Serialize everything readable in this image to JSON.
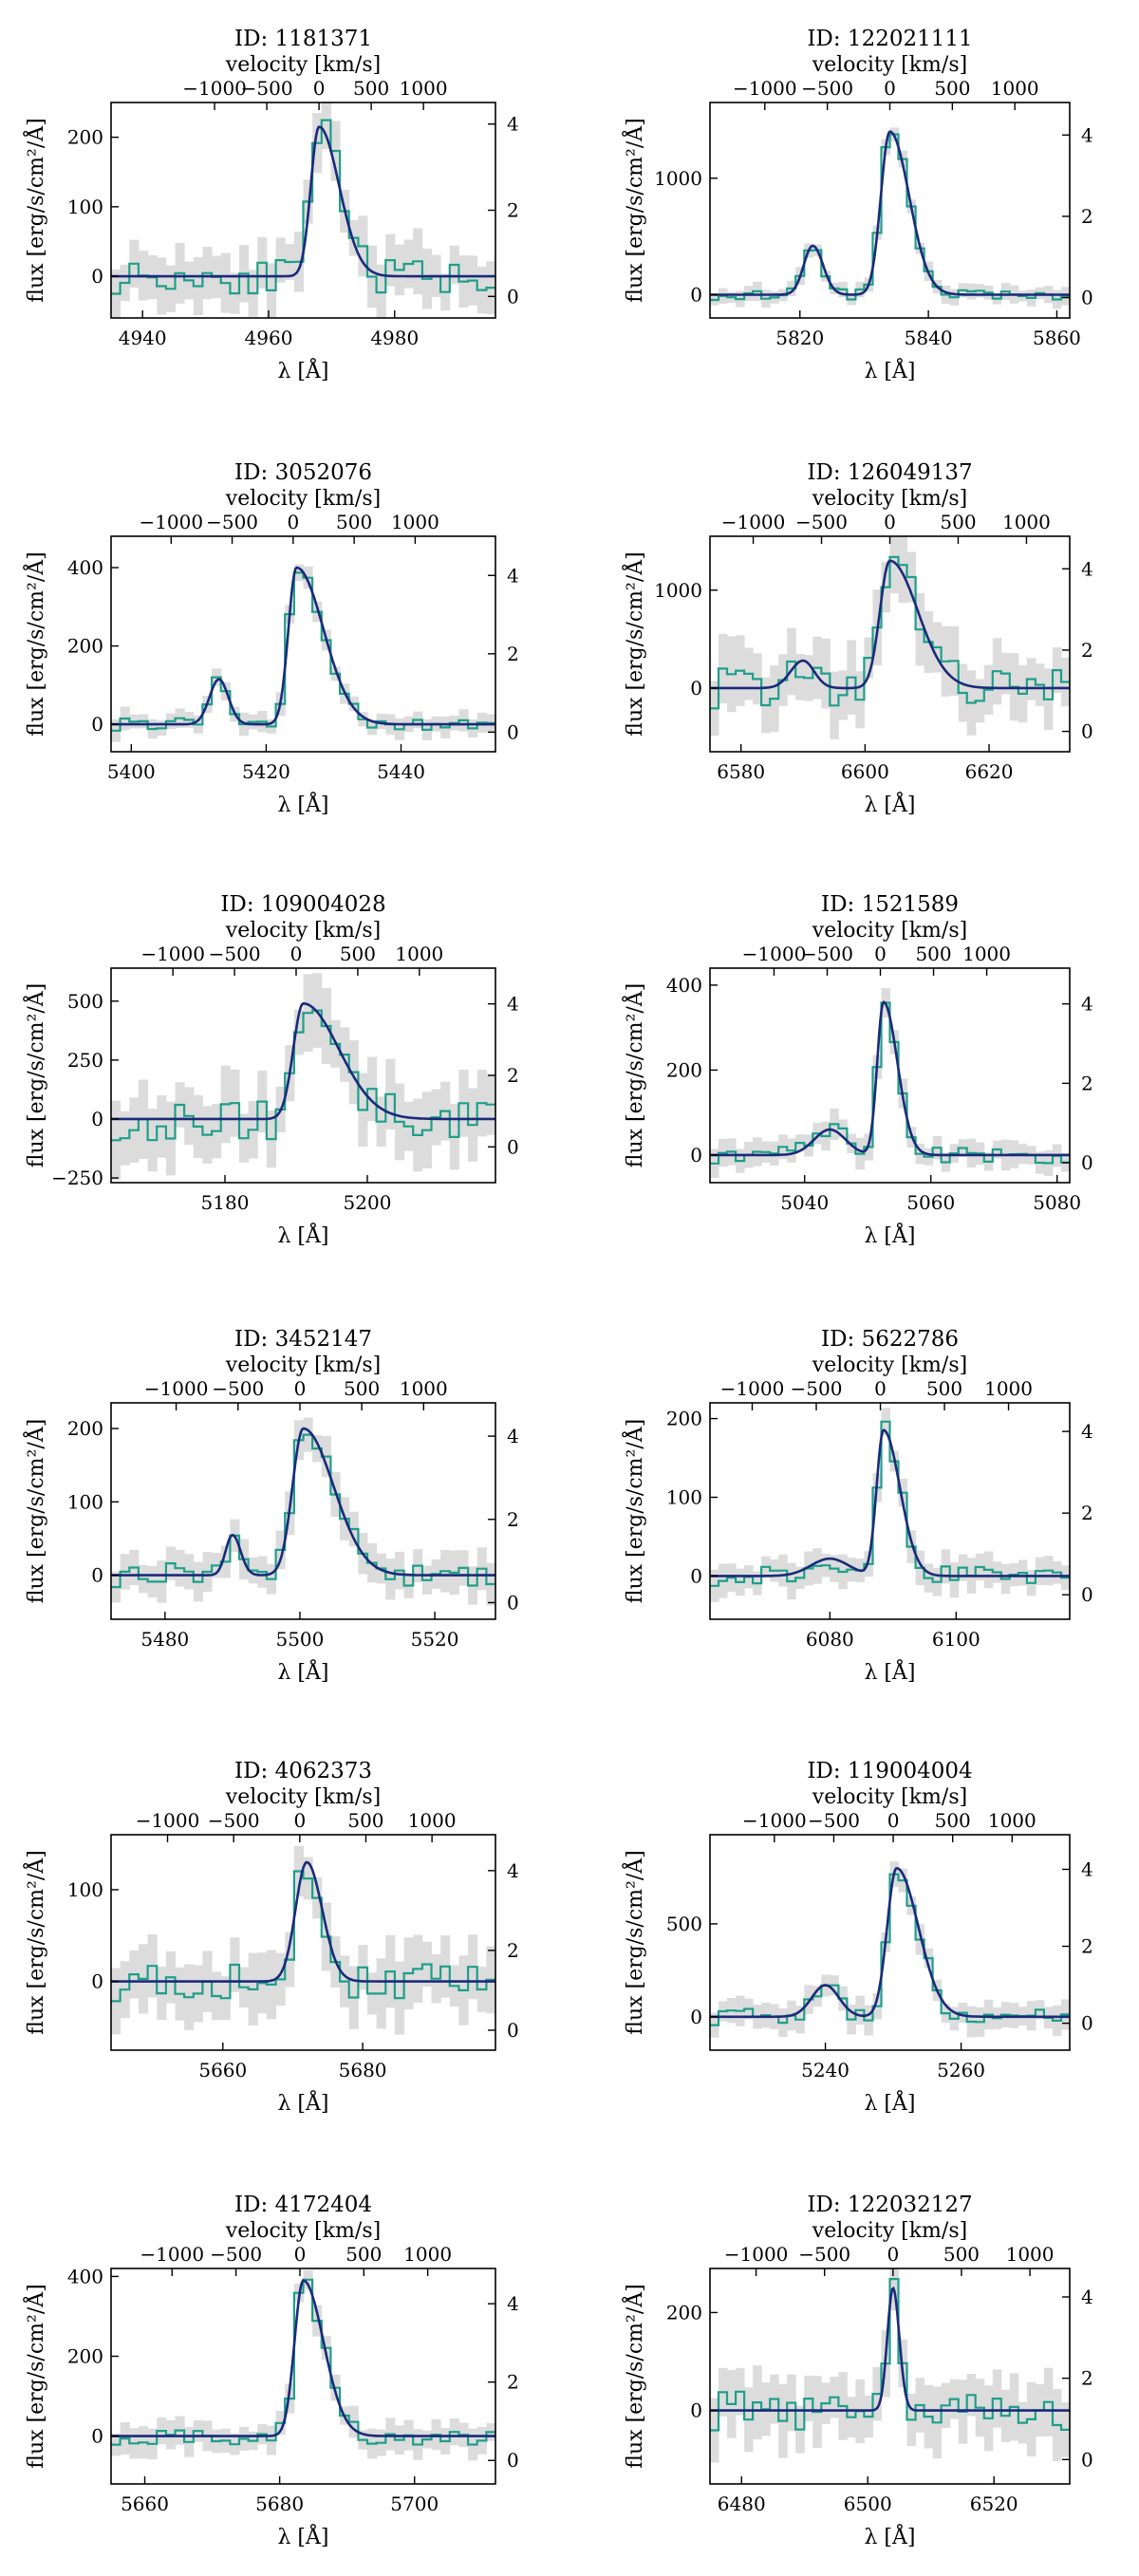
{
  "figure": {
    "colors": {
      "data": "#1f9e89",
      "model": "#1b2a7a",
      "band": "#dcdcdc",
      "axes": "#000000"
    }
  },
  "chart_data": [
    {
      "type": "line",
      "id": "ID: 1181371",
      "title": "ID: 1181371",
      "xlabel": "λ [Å]",
      "ylabel": "flux [erg/s/cm²/Å]",
      "top_label": "velocity [km/s]",
      "xlim": [
        4935,
        4996
      ],
      "ylim": [
        -60,
        250
      ],
      "rlim": [
        -0.5,
        4.5
      ],
      "xticks": [
        {
          "v": 4940,
          "l": "4940"
        },
        {
          "v": 4960,
          "l": "4960"
        },
        {
          "v": 4980,
          "l": "4980"
        }
      ],
      "yticks": [
        {
          "v": 0,
          "l": "0"
        },
        {
          "v": 100,
          "l": "100"
        },
        {
          "v": 200,
          "l": "200"
        }
      ],
      "rticks": [
        {
          "v": 0,
          "l": "0"
        },
        {
          "v": 2,
          "l": "2"
        },
        {
          "v": 4,
          "l": "4"
        }
      ],
      "vticks": [
        {
          "v": -1000,
          "l": "−1000"
        },
        {
          "v": -500,
          "l": "−500"
        },
        {
          "v": 0,
          "l": "0"
        },
        {
          "v": 500,
          "l": "500"
        },
        {
          "v": 1000,
          "l": "1000"
        }
      ],
      "center": 4968,
      "lines": [
        {
          "c": 4968,
          "a": 215,
          "sl": 1.3,
          "sr": 3.2
        }
      ],
      "seed": 11,
      "noise": 28
    },
    {
      "type": "line",
      "id": "ID: 122021111",
      "title": "ID: 122021111",
      "xlabel": "λ [Å]",
      "ylabel": "flux [erg/s/cm²/Å]",
      "top_label": "velocity [km/s]",
      "xlim": [
        5806,
        5862
      ],
      "ylim": [
        -200,
        1650
      ],
      "rlim": [
        -0.5,
        4.8
      ],
      "xticks": [
        {
          "v": 5820,
          "l": "5820"
        },
        {
          "v": 5840,
          "l": "5840"
        },
        {
          "v": 5860,
          "l": "5860"
        }
      ],
      "yticks": [
        {
          "v": 0,
          "l": "0"
        },
        {
          "v": 1000,
          "l": "1000"
        }
      ],
      "rticks": [
        {
          "v": 0,
          "l": "0"
        },
        {
          "v": 2,
          "l": "2"
        },
        {
          "v": 4,
          "l": "4"
        }
      ],
      "vticks": [
        {
          "v": -1000,
          "l": "−1000"
        },
        {
          "v": -500,
          "l": "−500"
        },
        {
          "v": 0,
          "l": "0"
        },
        {
          "v": 500,
          "l": "500"
        },
        {
          "v": 1000,
          "l": "1000"
        }
      ],
      "center": 5834,
      "lines": [
        {
          "c": 5834,
          "a": 1400,
          "sl": 1.4,
          "sr": 3.0
        },
        {
          "c": 5822,
          "a": 420,
          "sl": 1.4,
          "sr": 1.6
        }
      ],
      "seed": 23,
      "noise": 50
    },
    {
      "type": "line",
      "id": "ID: 3052076",
      "title": "ID: 3052076",
      "xlabel": "λ [Å]",
      "ylabel": "flux [erg/s/cm²/Å]",
      "top_label": "velocity [km/s]",
      "xlim": [
        5397,
        5454
      ],
      "ylim": [
        -70,
        480
      ],
      "rlim": [
        -0.5,
        5.0
      ],
      "xticks": [
        {
          "v": 5400,
          "l": "5400"
        },
        {
          "v": 5420,
          "l": "5420"
        },
        {
          "v": 5440,
          "l": "5440"
        }
      ],
      "yticks": [
        {
          "v": 0,
          "l": "0"
        },
        {
          "v": 200,
          "l": "200"
        },
        {
          "v": 400,
          "l": "400"
        }
      ],
      "rticks": [
        {
          "v": 0,
          "l": "0"
        },
        {
          "v": 2,
          "l": "2"
        },
        {
          "v": 4,
          "l": "4"
        }
      ],
      "vticks": [
        {
          "v": -1000,
          "l": "−1000"
        },
        {
          "v": -500,
          "l": "−500"
        },
        {
          "v": 0,
          "l": "0"
        },
        {
          "v": 500,
          "l": "500"
        },
        {
          "v": 1000,
          "l": "1000"
        }
      ],
      "center": 5424,
      "lines": [
        {
          "c": 5424.5,
          "a": 400,
          "sl": 1.2,
          "sr": 4.0
        },
        {
          "c": 5413,
          "a": 115,
          "sl": 1.4,
          "sr": 1.4
        }
      ],
      "seed": 37,
      "noise": 18
    },
    {
      "type": "line",
      "id": "ID: 126049137",
      "title": "ID: 126049137",
      "xlabel": "λ [Å]",
      "ylabel": "flux [erg/s/cm²/Å]",
      "top_label": "velocity [km/s]",
      "xlim": [
        6575,
        6633
      ],
      "ylim": [
        -650,
        1550
      ],
      "rlim": [
        -0.5,
        4.8
      ],
      "xticks": [
        {
          "v": 6580,
          "l": "6580"
        },
        {
          "v": 6600,
          "l": "6600"
        },
        {
          "v": 6620,
          "l": "6620"
        }
      ],
      "yticks": [
        {
          "v": 0,
          "l": "0"
        },
        {
          "v": 1000,
          "l": "1000"
        }
      ],
      "rticks": [
        {
          "v": 0,
          "l": "0"
        },
        {
          "v": 2,
          "l": "2"
        },
        {
          "v": 4,
          "l": "4"
        }
      ],
      "vticks": [
        {
          "v": -1000,
          "l": "−1000"
        },
        {
          "v": -500,
          "l": "−500"
        },
        {
          "v": 0,
          "l": "0"
        },
        {
          "v": 500,
          "l": "500"
        },
        {
          "v": 1000,
          "l": "1000"
        }
      ],
      "center": 6604,
      "lines": [
        {
          "c": 6604,
          "a": 1300,
          "sl": 1.6,
          "sr": 4.5
        },
        {
          "c": 6590,
          "a": 280,
          "sl": 2.0,
          "sr": 1.8
        }
      ],
      "seed": 41,
      "noise": 230
    },
    {
      "type": "line",
      "id": "ID: 109004028",
      "title": "ID: 109004028",
      "xlabel": "λ [Å]",
      "ylabel": "flux [erg/s/cm²/Å]",
      "top_label": "velocity [km/s]",
      "xlim": [
        5164,
        5218
      ],
      "ylim": [
        -270,
        640
      ],
      "rlim": [
        -1.0,
        5.0
      ],
      "xticks": [
        {
          "v": 5180,
          "l": "5180"
        },
        {
          "v": 5200,
          "l": "5200"
        }
      ],
      "yticks": [
        {
          "v": -250,
          "l": "−250"
        },
        {
          "v": 0,
          "l": "0"
        },
        {
          "v": 250,
          "l": "250"
        },
        {
          "v": 500,
          "l": "500"
        }
      ],
      "rticks": [
        {
          "v": 0,
          "l": "0"
        },
        {
          "v": 2,
          "l": "2"
        },
        {
          "v": 4,
          "l": "4"
        }
      ],
      "vticks": [
        {
          "v": -1000,
          "l": "−1000"
        },
        {
          "v": -500,
          "l": "−500"
        },
        {
          "v": 0,
          "l": "0"
        },
        {
          "v": 500,
          "l": "500"
        },
        {
          "v": 1000,
          "l": "1000"
        }
      ],
      "center": 5190,
      "lines": [
        {
          "c": 5191,
          "a": 490,
          "sl": 1.4,
          "sr": 5.0
        }
      ],
      "seed": 53,
      "noise": 100
    },
    {
      "type": "line",
      "id": "ID: 1521589",
      "title": "ID: 1521589",
      "xlabel": "λ [Å]",
      "ylabel": "flux [erg/s/cm²/Å]",
      "top_label": "velocity [km/s]",
      "xlim": [
        5025,
        5082
      ],
      "ylim": [
        -65,
        440
      ],
      "rlim": [
        -0.5,
        4.9
      ],
      "xticks": [
        {
          "v": 5040,
          "l": "5040"
        },
        {
          "v": 5060,
          "l": "5060"
        },
        {
          "v": 5080,
          "l": "5080"
        }
      ],
      "yticks": [
        {
          "v": 0,
          "l": "0"
        },
        {
          "v": 200,
          "l": "200"
        },
        {
          "v": 400,
          "l": "400"
        }
      ],
      "rticks": [
        {
          "v": 0,
          "l": "0"
        },
        {
          "v": 2,
          "l": "2"
        },
        {
          "v": 4,
          "l": "4"
        }
      ],
      "vticks": [
        {
          "v": -1000,
          "l": "−1000"
        },
        {
          "v": -500,
          "l": "−500"
        },
        {
          "v": 0,
          "l": "0"
        },
        {
          "v": 500,
          "l": "500"
        },
        {
          "v": 1000,
          "l": "1000"
        }
      ],
      "center": 5052,
      "lines": [
        {
          "c": 5052.5,
          "a": 360,
          "sl": 1.0,
          "sr": 2.2
        },
        {
          "c": 5044,
          "a": 60,
          "sl": 2.5,
          "sr": 2.5
        }
      ],
      "seed": 67,
      "noise": 22
    },
    {
      "type": "line",
      "id": "ID: 3452147",
      "title": "ID: 3452147",
      "xlabel": "λ [Å]",
      "ylabel": "flux [erg/s/cm²/Å]",
      "top_label": "velocity [km/s]",
      "xlim": [
        5472,
        5529
      ],
      "ylim": [
        -60,
        235
      ],
      "rlim": [
        -0.4,
        4.8
      ],
      "xticks": [
        {
          "v": 5480,
          "l": "5480"
        },
        {
          "v": 5500,
          "l": "5500"
        },
        {
          "v": 5520,
          "l": "5520"
        }
      ],
      "yticks": [
        {
          "v": 0,
          "l": "0"
        },
        {
          "v": 100,
          "l": "100"
        },
        {
          "v": 200,
          "l": "200"
        }
      ],
      "rticks": [
        {
          "v": 0,
          "l": "0"
        },
        {
          "v": 2,
          "l": "2"
        },
        {
          "v": 4,
          "l": "4"
        }
      ],
      "vticks": [
        {
          "v": -1000,
          "l": "−1000"
        },
        {
          "v": -500,
          "l": "−500"
        },
        {
          "v": 0,
          "l": "0"
        },
        {
          "v": 500,
          "l": "500"
        },
        {
          "v": 1000,
          "l": "1000"
        }
      ],
      "center": 5500,
      "lines": [
        {
          "c": 5500.5,
          "a": 200,
          "sl": 1.6,
          "sr": 4.5
        },
        {
          "c": 5490,
          "a": 55,
          "sl": 1.0,
          "sr": 1.2
        }
      ],
      "seed": 71,
      "noise": 18
    },
    {
      "type": "line",
      "id": "ID: 5622786",
      "title": "ID: 5622786",
      "xlabel": "λ [Å]",
      "ylabel": "flux [erg/s/cm²/Å]",
      "top_label": "velocity [km/s]",
      "xlim": [
        6061,
        6118
      ],
      "ylim": [
        -55,
        220
      ],
      "rlim": [
        -0.6,
        4.7
      ],
      "xticks": [
        {
          "v": 6080,
          "l": "6080"
        },
        {
          "v": 6100,
          "l": "6100"
        }
      ],
      "yticks": [
        {
          "v": 0,
          "l": "0"
        },
        {
          "v": 100,
          "l": "100"
        },
        {
          "v": 200,
          "l": "200"
        }
      ],
      "rticks": [
        {
          "v": 0,
          "l": "0"
        },
        {
          "v": 2,
          "l": "2"
        },
        {
          "v": 4,
          "l": "4"
        }
      ],
      "vticks": [
        {
          "v": -1000,
          "l": "−1000"
        },
        {
          "v": -500,
          "l": "−500"
        },
        {
          "v": 0,
          "l": "0"
        },
        {
          "v": 500,
          "l": "500"
        },
        {
          "v": 1000,
          "l": "1000"
        }
      ],
      "center": 6088,
      "lines": [
        {
          "c": 6088.5,
          "a": 185,
          "sl": 1.1,
          "sr": 2.6
        },
        {
          "c": 6080,
          "a": 22,
          "sl": 3.0,
          "sr": 3.0
        }
      ],
      "seed": 89,
      "noise": 14
    },
    {
      "type": "line",
      "id": "ID: 4062373",
      "title": "ID: 4062373",
      "xlabel": "λ [Å]",
      "ylabel": "flux [erg/s/cm²/Å]",
      "top_label": "velocity [km/s]",
      "xlim": [
        5644,
        5699
      ],
      "ylim": [
        -75,
        160
      ],
      "rlim": [
        -0.5,
        4.9
      ],
      "xticks": [
        {
          "v": 5660,
          "l": "5660"
        },
        {
          "v": 5680,
          "l": "5680"
        }
      ],
      "yticks": [
        {
          "v": 0,
          "l": "0"
        },
        {
          "v": 100,
          "l": "100"
        }
      ],
      "rticks": [
        {
          "v": 0,
          "l": "0"
        },
        {
          "v": 2,
          "l": "2"
        },
        {
          "v": 4,
          "l": "4"
        }
      ],
      "vticks": [
        {
          "v": -1000,
          "l": "−1000"
        },
        {
          "v": -500,
          "l": "−500"
        },
        {
          "v": 0,
          "l": "0"
        },
        {
          "v": 500,
          "l": "500"
        },
        {
          "v": 1000,
          "l": "1000"
        }
      ],
      "center": 5671,
      "lines": [
        {
          "c": 5672,
          "a": 130,
          "sl": 1.6,
          "sr": 2.2
        }
      ],
      "seed": 97,
      "noise": 24
    },
    {
      "type": "line",
      "id": "ID: 119004004",
      "title": "ID: 119004004",
      "xlabel": "λ [Å]",
      "ylabel": "flux [erg/s/cm²/Å]",
      "top_label": "velocity [km/s]",
      "xlim": [
        5223,
        5276
      ],
      "ylim": [
        -180,
        980
      ],
      "rlim": [
        -0.7,
        4.9
      ],
      "xticks": [
        {
          "v": 5240,
          "l": "5240"
        },
        {
          "v": 5260,
          "l": "5260"
        }
      ],
      "yticks": [
        {
          "v": 0,
          "l": "0"
        },
        {
          "v": 500,
          "l": "500"
        }
      ],
      "rticks": [
        {
          "v": 0,
          "l": "0"
        },
        {
          "v": 2,
          "l": "2"
        },
        {
          "v": 4,
          "l": "4"
        }
      ],
      "vticks": [
        {
          "v": -1000,
          "l": "−1000"
        },
        {
          "v": -500,
          "l": "−500"
        },
        {
          "v": 0,
          "l": "0"
        },
        {
          "v": 500,
          "l": "500"
        },
        {
          "v": 1000,
          "l": "1000"
        }
      ],
      "center": 5250,
      "lines": [
        {
          "c": 5250.5,
          "a": 800,
          "sl": 1.4,
          "sr": 3.2
        },
        {
          "c": 5240,
          "a": 170,
          "sl": 2.0,
          "sr": 2.0
        }
      ],
      "seed": 103,
      "noise": 50
    },
    {
      "type": "line",
      "id": "ID: 4172404",
      "title": "ID: 4172404",
      "xlabel": "λ [Å]",
      "ylabel": "flux [erg/s/cm²/Å]",
      "top_label": "velocity [km/s]",
      "xlim": [
        5655,
        5712
      ],
      "ylim": [
        -120,
        420
      ],
      "rlim": [
        -0.6,
        4.9
      ],
      "xticks": [
        {
          "v": 5660,
          "l": "5660"
        },
        {
          "v": 5680,
          "l": "5680"
        },
        {
          "v": 5700,
          "l": "5700"
        }
      ],
      "yticks": [
        {
          "v": 0,
          "l": "0"
        },
        {
          "v": 200,
          "l": "200"
        },
        {
          "v": 400,
          "l": "400"
        }
      ],
      "rticks": [
        {
          "v": 0,
          "l": "0"
        },
        {
          "v": 2,
          "l": "2"
        },
        {
          "v": 4,
          "l": "4"
        }
      ],
      "vticks": [
        {
          "v": -1000,
          "l": "−1000"
        },
        {
          "v": -500,
          "l": "−500"
        },
        {
          "v": 0,
          "l": "0"
        },
        {
          "v": 500,
          "l": "500"
        },
        {
          "v": 1000,
          "l": "1000"
        }
      ],
      "center": 5683,
      "lines": [
        {
          "c": 5683.5,
          "a": 390,
          "sl": 1.3,
          "sr": 3.0
        }
      ],
      "seed": 109,
      "noise": 24
    },
    {
      "type": "line",
      "id": "ID: 122032127",
      "title": "ID: 122032127",
      "xlabel": "λ [Å]",
      "ylabel": "flux [erg/s/cm²/Å]",
      "top_label": "velocity [km/s]",
      "xlim": [
        6475,
        6532
      ],
      "ylim": [
        -150,
        290
      ],
      "rlim": [
        -0.6,
        4.7
      ],
      "xticks": [
        {
          "v": 6480,
          "l": "6480"
        },
        {
          "v": 6500,
          "l": "6500"
        },
        {
          "v": 6520,
          "l": "6520"
        }
      ],
      "yticks": [
        {
          "v": 0,
          "l": "0"
        },
        {
          "v": 200,
          "l": "200"
        }
      ],
      "rticks": [
        {
          "v": 0,
          "l": "0"
        },
        {
          "v": 2,
          "l": "2"
        },
        {
          "v": 4,
          "l": "4"
        }
      ],
      "vticks": [
        {
          "v": -1000,
          "l": "−1000"
        },
        {
          "v": -500,
          "l": "−500"
        },
        {
          "v": 0,
          "l": "0"
        },
        {
          "v": 500,
          "l": "500"
        },
        {
          "v": 1000,
          "l": "1000"
        }
      ],
      "center": 6504,
      "lines": [
        {
          "c": 6504,
          "a": 250,
          "sl": 0.9,
          "sr": 1.0
        }
      ],
      "seed": 127,
      "noise": 45
    }
  ]
}
